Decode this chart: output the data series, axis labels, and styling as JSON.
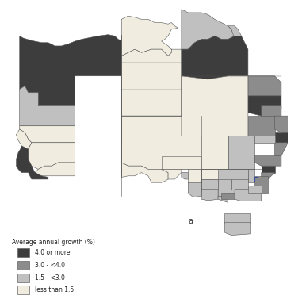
{
  "legend_title": "Average annual growth (%)",
  "legend_items": [
    {
      "label": "4.0 or more",
      "color": "#3d3d3d"
    },
    {
      "label": "3.0 - <4.0",
      "color": "#8c8c8c"
    },
    {
      "label": "1.5 - <3.0",
      "color": "#c0c0c0"
    },
    {
      "label": "less than 1.5",
      "color": "#f0ede0"
    }
  ],
  "border_color": "#555555",
  "border_width": 0.4,
  "background_color": "#ffffff",
  "fig_width": 3.86,
  "fig_height": 3.77,
  "dpi": 100,
  "lon_min": 113.0,
  "lon_max": 154.0,
  "lat_min": -44.5,
  "lat_max": -9.5
}
